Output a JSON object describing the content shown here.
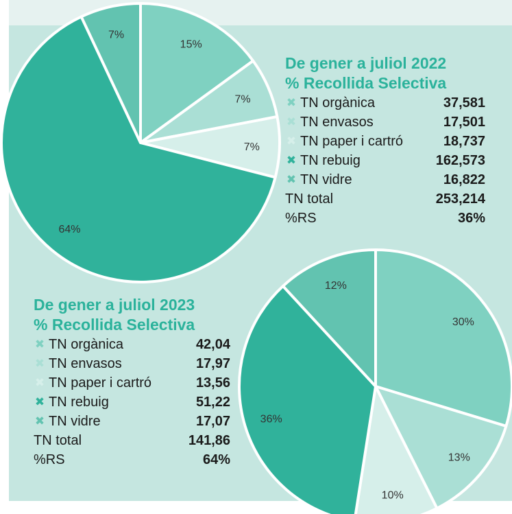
{
  "chart_data": [
    {
      "type": "pie",
      "title": "De gener a juliol 2022",
      "subtitle": "% Recollida Selectiva",
      "categories": [
        "TN orgànica",
        "TN envasos",
        "TN paper i cartró",
        "TN rebuig",
        "TN vidre"
      ],
      "values": [
        15,
        7,
        7,
        64,
        7
      ],
      "slice_labels": [
        "15%",
        "7%",
        "7%",
        "64%",
        "7%"
      ],
      "colors": [
        "#7fd1c1",
        "#aadfd5",
        "#d6efea",
        "#30b29b",
        "#62c3b0"
      ],
      "legend_values": [
        "37,581",
        "17,501",
        "18,737",
        "162,573",
        "16,822"
      ],
      "total_label": "TN total",
      "total_value": "253,214",
      "rs_label": "%RS",
      "rs_value": "36%"
    },
    {
      "type": "pie",
      "title": "De gener a juliol 2023",
      "subtitle": "% Recollida Selectiva",
      "categories": [
        "TN orgànica",
        "TN envasos",
        "TN paper i cartró",
        "TN rebuig",
        "TN vidre"
      ],
      "values": [
        30,
        13,
        10,
        36,
        12
      ],
      "slice_labels": [
        "30%",
        "13%",
        "10%",
        "36%",
        "12%"
      ],
      "colors": [
        "#7fd1c1",
        "#aadfd5",
        "#d6efea",
        "#30b29b",
        "#62c3b0"
      ],
      "legend_values": [
        "42,04",
        "17,97",
        "13,56",
        "51,22",
        "17,07"
      ],
      "total_label": "TN total",
      "total_value": "141,86",
      "rs_label": "%RS",
      "rs_value": "64%"
    }
  ]
}
